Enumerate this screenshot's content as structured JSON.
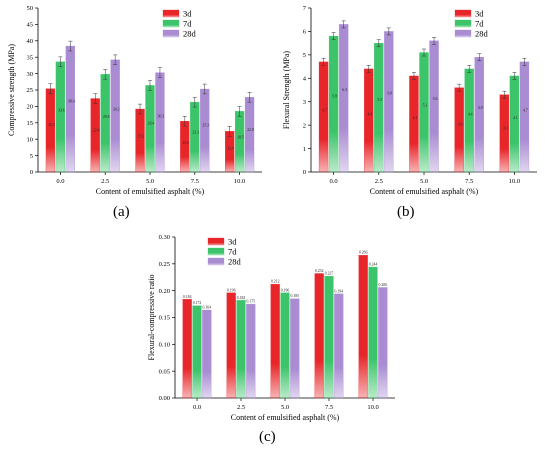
{
  "panel_labels": [
    "(a)",
    "(b)",
    "(c)"
  ],
  "series_colors": {
    "3d": "#e8262a",
    "7d": "#3cc46a",
    "28d": "#a98cd2"
  },
  "chart_data": [
    {
      "type": "bar",
      "panel": "(a)",
      "xlabel": "Content of emulsified asphalt (%)",
      "ylabel": "Compressive strength (MPa)",
      "categories": [
        "0.0",
        "2.5",
        "5.0",
        "7.5",
        "10.0"
      ],
      "ylim": [
        0,
        50
      ],
      "yticks": [
        "0",
        "5",
        "10",
        "15",
        "20",
        "25",
        "30",
        "35",
        "40",
        "45",
        "50"
      ],
      "error_bars": true,
      "legend": "top-right",
      "series": [
        {
          "name": "3d",
          "values": [
            25.4,
            22.4,
            19.2,
            15.5,
            12.4
          ],
          "labels": [
            "25.4",
            "22.4",
            "19.2",
            "15.5",
            "12.4"
          ]
        },
        {
          "name": "7d",
          "values": [
            33.6,
            29.8,
            26.4,
            21.3,
            18.5
          ],
          "labels": [
            "33.6",
            "29.8",
            "26.4",
            "21.3",
            "18.5"
          ]
        },
        {
          "name": "28d",
          "values": [
            38.4,
            34.2,
            30.3,
            25.3,
            22.8
          ],
          "labels": [
            "38.4",
            "34.2",
            "30.3",
            "25.3",
            "22.8"
          ]
        }
      ]
    },
    {
      "type": "bar",
      "panel": "(b)",
      "xlabel": "Content of emulsified asphalt (%)",
      "ylabel": "Flexural Strength (MPa)",
      "categories": [
        "0.0",
        "2.5",
        "5.0",
        "7.5",
        "10.0"
      ],
      "ylim": [
        0,
        7
      ],
      "yticks": [
        "0",
        "1",
        "2",
        "3",
        "4",
        "5",
        "6",
        "7"
      ],
      "error_bars": true,
      "legend": "top-right",
      "series": [
        {
          "name": "3d",
          "values": [
            4.7,
            4.4,
            4.1,
            3.6,
            3.3
          ],
          "labels": [
            "4.7",
            "4.4",
            "4.1",
            "3.6",
            "3.3"
          ]
        },
        {
          "name": "7d",
          "values": [
            5.8,
            5.5,
            5.1,
            4.4,
            4.1
          ],
          "labels": [
            "5.8",
            "5.5",
            "5.1",
            "4.4",
            "4.1"
          ]
        },
        {
          "name": "28d",
          "values": [
            6.3,
            6.0,
            5.6,
            4.9,
            4.7
          ],
          "labels": [
            "6.3",
            "6.0",
            "5.6",
            "4.9",
            "4.7"
          ]
        }
      ]
    },
    {
      "type": "bar",
      "panel": "(c)",
      "xlabel": "Content of emulsified asphalt (%)",
      "ylabel": "Flexural-compressive ratio",
      "categories": [
        "0.0",
        "2.5",
        "5.0",
        "7.5",
        "10.0"
      ],
      "ylim": [
        0,
        0.3
      ],
      "yticks": [
        "0.00",
        "0.05",
        "0.10",
        "0.15",
        "0.20",
        "0.25",
        "0.30"
      ],
      "error_bars": false,
      "legend": "top-left",
      "series": [
        {
          "name": "3d",
          "values": [
            0.184,
            0.196,
            0.212,
            0.232,
            0.266
          ],
          "labels": [
            "0.184",
            "0.196",
            "0.212",
            "0.232",
            "0.266"
          ]
        },
        {
          "name": "7d",
          "values": [
            0.172,
            0.182,
            0.196,
            0.227,
            0.244
          ],
          "labels": [
            "0.172",
            "0.182",
            "0.196",
            "0.227",
            "0.244"
          ]
        },
        {
          "name": "28d",
          "values": [
            0.164,
            0.175,
            0.185,
            0.194,
            0.206
          ],
          "labels": [
            "0.164",
            "0.175",
            "0.185",
            "0.194",
            "0.206"
          ]
        }
      ]
    }
  ]
}
